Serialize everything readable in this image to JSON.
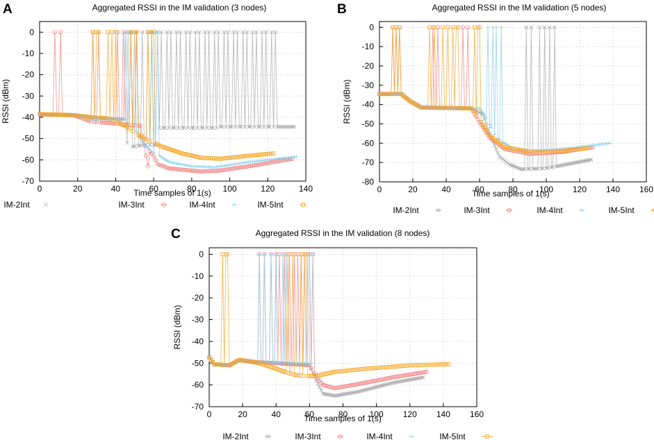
{
  "chart_data": [
    {
      "type": "line",
      "label": "A",
      "title": "Aggregated RSSI in the IM validation (3 nodes)",
      "xlabel": "Time samples of 1(s)",
      "ylabel": "RSSI (dBm)",
      "xlim": [
        0,
        140
      ],
      "ylim": [
        -70,
        5
      ],
      "xticks": [
        0,
        20,
        40,
        60,
        80,
        100,
        120,
        140
      ],
      "yticks": [
        0,
        -10,
        -20,
        -30,
        -40,
        -50,
        -60,
        -70
      ],
      "grid": true,
      "series": [
        {
          "name": "IM-2Int",
          "color": "#a9a9a9",
          "marker": "x",
          "start": 0,
          "end": 134,
          "base": [
            [
              0,
              -38.5
            ],
            [
              17,
              -38.8
            ],
            [
              27,
              -40
            ],
            [
              44,
              -41
            ],
            [
              46,
              -52
            ],
            [
              47,
              -59
            ],
            [
              48,
              -54
            ],
            [
              55,
              -53
            ],
            [
              62,
              -53
            ],
            [
              63,
              -45
            ],
            [
              70,
              -45
            ],
            [
              94,
              -45
            ],
            [
              95,
              -44.5
            ],
            [
              125,
              -44.5
            ]
          ],
          "spikes": [
            [
              43,
              50
            ],
            [
              49,
              55
            ],
            [
              56,
              60
            ],
            [
              61,
              65
            ],
            [
              66,
              70
            ],
            [
              71,
              75
            ],
            [
              76,
              80
            ],
            [
              81,
              85
            ],
            [
              86,
              90
            ],
            [
              91,
              95
            ],
            [
              96,
              100
            ],
            [
              101,
              105
            ],
            [
              106,
              110
            ],
            [
              111,
              115
            ],
            [
              116,
              120
            ],
            [
              121,
              125
            ]
          ]
        },
        {
          "name": "IM-3Int",
          "color": "#f08080",
          "marker": "o",
          "start": 0,
          "end": 133,
          "base": [
            [
              0,
              -38.7
            ],
            [
              18,
              -39
            ],
            [
              27,
              -42
            ],
            [
              40,
              -43
            ],
            [
              53,
              -44
            ],
            [
              56,
              -58
            ],
            [
              57,
              -63
            ],
            [
              58,
              -56
            ],
            [
              60,
              -58
            ],
            [
              62,
              -62
            ],
            [
              68,
              -64
            ],
            [
              85,
              -65.5
            ],
            [
              95,
              -65
            ],
            [
              110,
              -63
            ],
            [
              133,
              -59.5
            ]
          ],
          "spikes": [
            [
              6,
              12
            ],
            [
              26,
              32
            ],
            [
              39,
              45
            ],
            [
              47,
              52
            ]
          ]
        },
        {
          "name": "IM-4Int",
          "color": "#87ceeb",
          "marker": "+",
          "start": 0,
          "end": 135,
          "base": [
            [
              0,
              -38.5
            ],
            [
              18,
              -38.8
            ],
            [
              28,
              -41
            ],
            [
              45,
              -41
            ],
            [
              46,
              -44
            ],
            [
              50,
              -45
            ],
            [
              55,
              -53
            ],
            [
              59,
              -56
            ],
            [
              63,
              -58
            ],
            [
              68,
              -61
            ],
            [
              80,
              -63
            ],
            [
              92,
              -63.5
            ],
            [
              110,
              -61
            ],
            [
              135,
              -58.5
            ]
          ],
          "spikes": [
            [
              44,
              52
            ],
            [
              57,
              64
            ]
          ]
        },
        {
          "name": "IM-5Int",
          "color": "#f5a623",
          "marker": "s",
          "start": 0,
          "end": 123,
          "base": [
            [
              0,
              -38.5
            ],
            [
              18,
              -39
            ],
            [
              28,
              -40
            ],
            [
              36,
              -40.5
            ],
            [
              45,
              -44
            ],
            [
              55,
              -50
            ],
            [
              65,
              -54
            ],
            [
              75,
              -57
            ],
            [
              85,
              -59
            ],
            [
              95,
              -59.5
            ],
            [
              105,
              -58.5
            ],
            [
              123,
              -57
            ]
          ],
          "spikes": [
            [
              26,
              33
            ],
            [
              34,
              42
            ],
            [
              46,
              53
            ],
            [
              55,
              62
            ]
          ]
        }
      ]
    },
    {
      "type": "line",
      "label": "B",
      "title": "Aggregated RSSI in the IM validation (5 nodes)",
      "xlabel": "Time samples of 1(s)",
      "ylabel": "RSSI (dBm)",
      "xlim": [
        0,
        160
      ],
      "ylim": [
        -80,
        3
      ],
      "xticks": [
        0,
        20,
        40,
        60,
        80,
        100,
        120,
        140,
        160
      ],
      "yticks": [
        0,
        -10,
        -20,
        -30,
        -40,
        -50,
        -60,
        -70,
        -80
      ],
      "grid": true,
      "series": [
        {
          "name": "IM-2Int",
          "color": "#a9a9a9",
          "marker": "x",
          "start": 0,
          "end": 127,
          "base": [
            [
              0,
              -34.5
            ],
            [
              13,
              -34.5
            ],
            [
              18,
              -38
            ],
            [
              25,
              -41.5
            ],
            [
              55,
              -42
            ],
            [
              62,
              -45
            ],
            [
              66,
              -55
            ],
            [
              72,
              -67
            ],
            [
              78,
              -71
            ],
            [
              85,
              -73.5
            ],
            [
              100,
              -73
            ],
            [
              115,
              -70.5
            ],
            [
              127,
              -68.5
            ]
          ],
          "spikes": [
            [
              86,
              92
            ],
            [
              94,
              100
            ],
            [
              101,
              106
            ]
          ]
        },
        {
          "name": "IM-3Int",
          "color": "#f08080",
          "marker": "o",
          "start": 0,
          "end": 128,
          "base": [
            [
              0,
              -34.5
            ],
            [
              13,
              -34.5
            ],
            [
              18,
              -38
            ],
            [
              25,
              -41.5
            ],
            [
              55,
              -42
            ],
            [
              60,
              -49
            ],
            [
              66,
              -57
            ],
            [
              75,
              -63
            ],
            [
              90,
              -65.5
            ],
            [
              110,
              -64.5
            ],
            [
              128,
              -62
            ]
          ],
          "spikes": [
            [
              6,
              14
            ],
            [
              30,
              36
            ],
            [
              48,
              54
            ]
          ]
        },
        {
          "name": "IM-4Int",
          "color": "#87ceeb",
          "marker": "+",
          "start": 0,
          "end": 138,
          "base": [
            [
              0,
              -34.5
            ],
            [
              13,
              -34.5
            ],
            [
              18,
              -38
            ],
            [
              25,
              -41.5
            ],
            [
              60,
              -42
            ],
            [
              64,
              -47
            ],
            [
              70,
              -57
            ],
            [
              80,
              -63
            ],
            [
              95,
              -64
            ],
            [
              115,
              -62.5
            ],
            [
              138,
              -60
            ]
          ],
          "spikes": [
            [
              63,
              69
            ],
            [
              68,
              74
            ]
          ]
        },
        {
          "name": "IM-5Int",
          "color": "#f5a623",
          "marker": "s",
          "start": 0,
          "end": 125,
          "base": [
            [
              0,
              -34.5
            ],
            [
              13,
              -34.5
            ],
            [
              18,
              -38
            ],
            [
              25,
              -41.5
            ],
            [
              55,
              -42
            ],
            [
              60,
              -48
            ],
            [
              66,
              -56
            ],
            [
              75,
              -62
            ],
            [
              90,
              -64.5
            ],
            [
              110,
              -64
            ],
            [
              125,
              -62.5
            ]
          ],
          "spikes": [
            [
              6,
              14
            ],
            [
              28,
              34
            ],
            [
              36,
              42
            ],
            [
              42,
              49
            ],
            [
              55,
              62
            ]
          ]
        }
      ]
    },
    {
      "type": "line",
      "label": "C",
      "title": "Aggregated RSSI in the IM validation (8 nodes)",
      "xlabel": "Time samples of 1(s)",
      "ylabel": "RSSI (dBm)",
      "xlim": [
        0,
        160
      ],
      "ylim": [
        -70,
        3
      ],
      "xticks": [
        0,
        20,
        40,
        60,
        80,
        100,
        120,
        140,
        160
      ],
      "yticks": [
        0,
        -10,
        -20,
        -30,
        -40,
        -50,
        -60,
        -70
      ],
      "grid": true,
      "series": [
        {
          "name": "IM-2Int",
          "color": "#a9a9a9",
          "marker": "x",
          "start": 0,
          "end": 128,
          "base": [
            [
              0,
              -47
            ],
            [
              3,
              -50.5
            ],
            [
              12,
              -51
            ],
            [
              18,
              -48.5
            ],
            [
              28,
              -49.5
            ],
            [
              42,
              -50
            ],
            [
              60,
              -51
            ],
            [
              64,
              -58
            ],
            [
              68,
              -64
            ],
            [
              75,
              -65
            ],
            [
              90,
              -63
            ],
            [
              110,
              -59
            ],
            [
              128,
              -56.5
            ]
          ],
          "spikes": []
        },
        {
          "name": "IM-3Int",
          "color": "#f08080",
          "marker": "o",
          "start": 0,
          "end": 130,
          "base": [
            [
              0,
              -47.5
            ],
            [
              3,
              -50.5
            ],
            [
              12,
              -51
            ],
            [
              18,
              -48.5
            ],
            [
              28,
              -49.5
            ],
            [
              60,
              -51
            ],
            [
              64,
              -56
            ],
            [
              68,
              -60
            ],
            [
              75,
              -61.5
            ],
            [
              90,
              -59.5
            ],
            [
              110,
              -56.5
            ],
            [
              130,
              -54
            ]
          ],
          "spikes": [
            [
              28,
              34
            ],
            [
              36,
              41
            ],
            [
              41,
              46
            ],
            [
              46,
              52
            ],
            [
              52,
              56
            ],
            [
              55,
              61
            ],
            [
              58,
              63
            ]
          ]
        },
        {
          "name": "IM-4Int",
          "color": "#87ceeb",
          "marker": "+",
          "start": 0,
          "end": 62,
          "base": [
            [
              0,
              -47.5
            ],
            [
              3,
              -50.5
            ],
            [
              12,
              -51
            ],
            [
              18,
              -48.5
            ],
            [
              28,
              -49.5
            ],
            [
              62,
              -50
            ]
          ],
          "spikes": [
            [
              28,
              34
            ],
            [
              36,
              41
            ],
            [
              43,
              47
            ],
            [
              58,
              63
            ]
          ]
        },
        {
          "name": "IM-5Int",
          "color": "#f5a623",
          "marker": "s",
          "start": 0,
          "end": 143,
          "base": [
            [
              0,
              -47.5
            ],
            [
              3,
              -50.5
            ],
            [
              12,
              -51
            ],
            [
              18,
              -48.5
            ],
            [
              30,
              -50
            ],
            [
              38,
              -52
            ],
            [
              45,
              -54
            ],
            [
              52,
              -55.5
            ],
            [
              60,
              -56
            ],
            [
              66,
              -55.5
            ],
            [
              75,
              -54
            ],
            [
              95,
              -52.5
            ],
            [
              120,
              -51
            ],
            [
              143,
              -50.5
            ]
          ],
          "spikes": [
            [
              6,
              13
            ],
            [
              45,
              51
            ],
            [
              53,
              60
            ]
          ]
        }
      ]
    }
  ]
}
